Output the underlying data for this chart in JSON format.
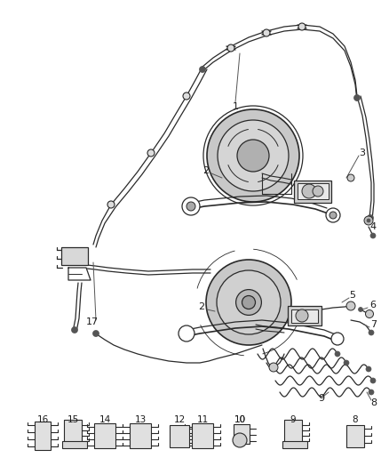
{
  "title": "",
  "background_color": "#ffffff",
  "line_color": "#2a2a2a",
  "label_color": "#1a1a1a",
  "fig_width": 4.38,
  "fig_height": 5.33,
  "dpi": 100
}
